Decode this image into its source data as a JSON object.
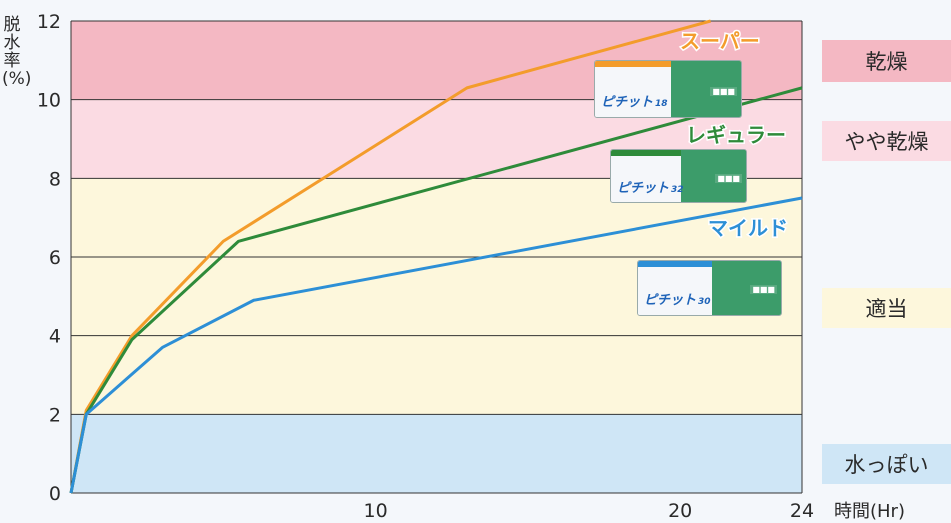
{
  "chart_data": {
    "type": "line",
    "ylabel": "脱水率(%)",
    "xlabel": "時間(Hr)",
    "ylim": [
      0,
      12
    ],
    "y_ticks": [
      "0",
      "2",
      "4",
      "6",
      "8",
      "10",
      "12"
    ],
    "x_ticks": [
      "10",
      "20",
      "24"
    ],
    "x_tick_values": [
      10,
      20,
      24
    ],
    "y_tick_values": [
      0,
      2,
      4,
      6,
      8,
      10,
      12
    ],
    "zones": [
      {
        "label": "乾燥",
        "from": 10,
        "to": 12,
        "color": "#f4b8c3"
      },
      {
        "label": "やや乾燥",
        "from": 8,
        "to": 10,
        "color": "#fbdbe3"
      },
      {
        "label": "適当",
        "from": 2,
        "to": 8,
        "color": "#fdf7dc"
      },
      {
        "label": "水っぽい",
        "from": 0,
        "to": 2,
        "color": "#cfe6f6"
      }
    ],
    "series": [
      {
        "name": "スーパー",
        "color": "#f39c2b",
        "x": [
          0,
          0.5,
          2,
          5,
          13,
          21
        ],
        "y": [
          0,
          2.1,
          4.0,
          6.4,
          10.3,
          12.0
        ]
      },
      {
        "name": "レギュラー",
        "color": "#2e8b3a",
        "x": [
          0,
          0.5,
          2,
          5.5,
          24
        ],
        "y": [
          0,
          2.0,
          3.9,
          6.4,
          10.3
        ]
      },
      {
        "name": "マイルド",
        "color": "#2d8fd6",
        "x": [
          0,
          0.5,
          3,
          6,
          24
        ],
        "y": [
          0,
          2.0,
          3.7,
          4.9,
          7.5
        ]
      }
    ]
  },
  "products": [
    {
      "brand": "ピチット",
      "number": "18"
    },
    {
      "brand": "ピチット",
      "number": "32"
    },
    {
      "brand": "ピチット",
      "number": "30"
    }
  ]
}
